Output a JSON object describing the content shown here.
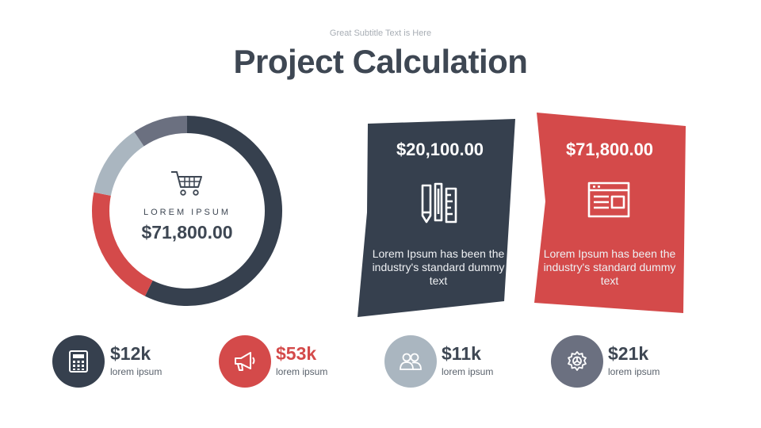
{
  "header": {
    "subtitle": "Great Subtitle Text is Here",
    "title": "Project Calculation"
  },
  "donut": {
    "label": "LOREM IPSUM",
    "value": "$71,800.00",
    "icon": "shopping-cart-icon",
    "segments": [
      {
        "fraction": 0.55,
        "color": "#36404e"
      },
      {
        "fraction": 0.2,
        "color": "#d44a4a"
      },
      {
        "fraction": 0.12,
        "color": "#aab6c0"
      },
      {
        "fraction": 0.09,
        "color": "#6b7080"
      }
    ]
  },
  "cards": [
    {
      "amount": "$20,100.00",
      "description": "Lorem Ipsum has been the industry's standard dummy text",
      "icon": "ruler-pencil-icon",
      "color": "#36404e"
    },
    {
      "amount": "$71,800.00",
      "description": "Lorem Ipsum has been the industry's standard dummy text",
      "icon": "browser-window-icon",
      "color": "#d44a4a"
    }
  ],
  "stats": [
    {
      "value": "$12k",
      "label": "lorem ipsum",
      "icon": "calculator-icon",
      "color": "#36404e",
      "value_color": "#3e4753"
    },
    {
      "value": "$53k",
      "label": "lorem ipsum",
      "icon": "megaphone-icon",
      "color": "#d44a4a",
      "value_color": "#d44a4a"
    },
    {
      "value": "$11k",
      "label": "lorem ipsum",
      "icon": "users-icon",
      "color": "#aab6c0",
      "value_color": "#3e4753"
    },
    {
      "value": "$21k",
      "label": "lorem ipsum",
      "icon": "gear-icon",
      "color": "#6b7080",
      "value_color": "#3e4753"
    }
  ]
}
